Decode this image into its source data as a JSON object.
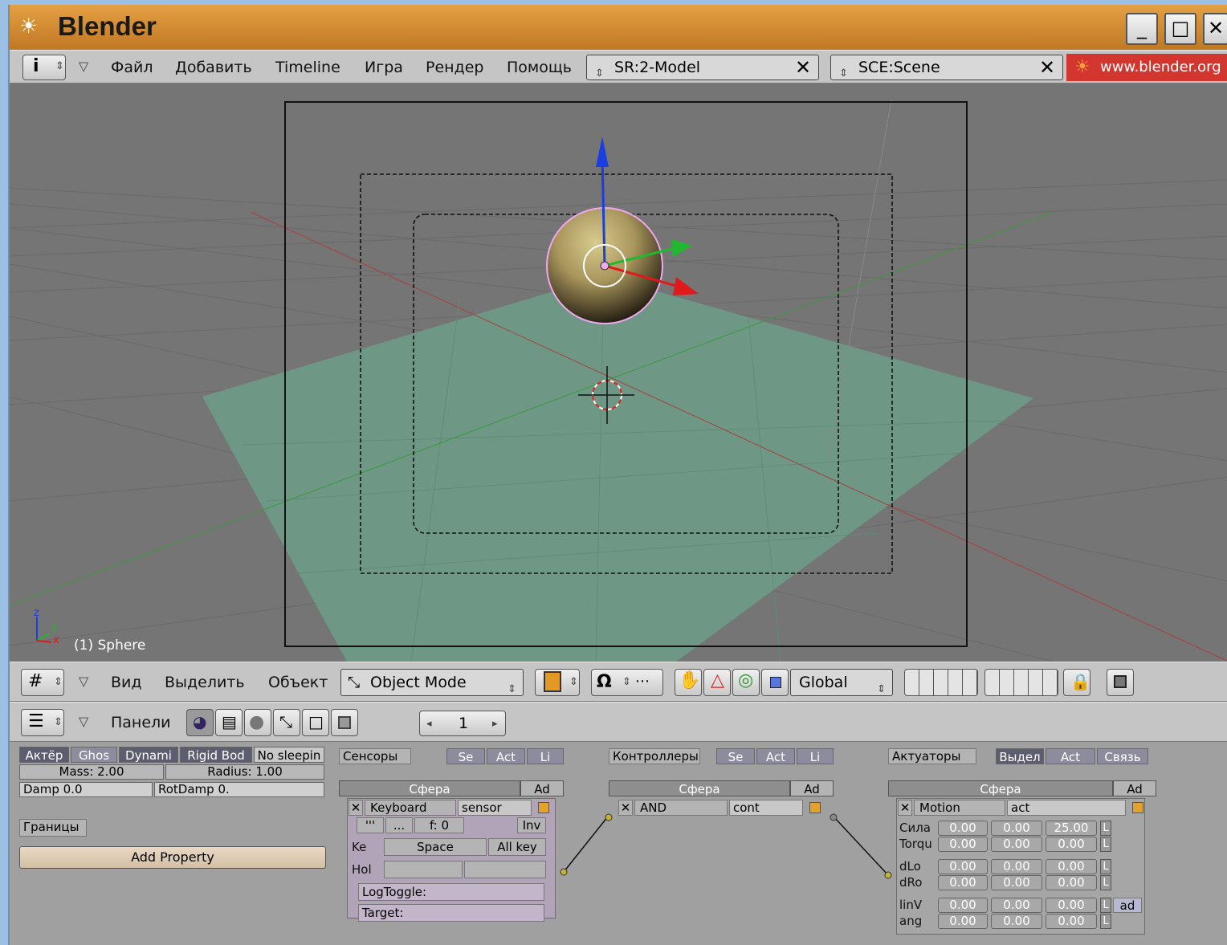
{
  "window": {
    "title": "Blender",
    "logo_icon": "blender-logo-icon",
    "minimize": "_",
    "maximize": "□",
    "close": "✕"
  },
  "top_header": {
    "info_button": "i",
    "menus": [
      "Файл",
      "Добавить",
      "Timeline",
      "Игра",
      "Рендер",
      "Помощь"
    ],
    "screen_field": "SR:2-Model",
    "scene_field": "SCE:Scene",
    "close_glyph": "✕",
    "website": "www.blender.org"
  },
  "viewport": {
    "axis_z": "z",
    "axis_y": "y",
    "axis_x": "x",
    "object_label": "(1) Sphere"
  },
  "view_header": {
    "menus": [
      "Вид",
      "Выделить",
      "Объект"
    ],
    "mode": "Object Mode",
    "orientation": "Global"
  },
  "buttons_header": {
    "panels_label": "Панели",
    "frame": "1"
  },
  "physics": {
    "tabs": [
      "Актёр",
      "Ghos",
      "Dynami",
      "Rigid Bod",
      "No sleepin"
    ],
    "mass": "Mass: 2.00",
    "radius": "Radius: 1.00",
    "damp": "Damp 0.0",
    "rotdamp": "RotDamp 0.",
    "bounds": "Границы",
    "add_property": "Add Property"
  },
  "sensors": {
    "title": "Сенсоры",
    "filters": [
      "Se",
      "Act",
      "Li"
    ],
    "object": "Сфера",
    "add": "Ad",
    "type": "Keyboard",
    "name": "sensor",
    "freq": "f: 0",
    "inv": "Inv",
    "key_label": "Ke",
    "key_value": "Space",
    "all_keys": "All key",
    "hold_label": "Hol",
    "logtoggle": "LogToggle:",
    "target": "Target:"
  },
  "controllers": {
    "title": "Контроллеры",
    "filters": [
      "Se",
      "Act",
      "Li"
    ],
    "object": "Сфера",
    "add": "Ad",
    "type": "AND",
    "name": "cont"
  },
  "actuators": {
    "title": "Актуаторы",
    "filters": [
      "Выдел",
      "Act",
      "Связь"
    ],
    "object": "Сфера",
    "add": "Ad",
    "type": "Motion",
    "name": "act",
    "rows": [
      {
        "label": "Сила",
        "v": [
          "0.00",
          "0.00",
          "25.00"
        ]
      },
      {
        "label": "Torqu",
        "v": [
          "0.00",
          "0.00",
          "0.00"
        ]
      },
      {
        "label": "dLo",
        "v": [
          "0.00",
          "0.00",
          "0.00"
        ]
      },
      {
        "label": "dRo",
        "v": [
          "0.00",
          "0.00",
          "0.00"
        ]
      },
      {
        "label": "linV",
        "v": [
          "0.00",
          "0.00",
          "0.00"
        ]
      },
      {
        "label": "ang",
        "v": [
          "0.00",
          "0.00",
          "0.00"
        ]
      }
    ],
    "local": "L",
    "add_btn": "ad"
  },
  "colors": {
    "titlebar": "#d58c33",
    "viewport_bg": "#757575",
    "ground_plane": "#6e9a86",
    "sphere": "#b5a366",
    "axis_z": "#1a3fe0",
    "axis_y": "#1fb82f",
    "axis_x": "#e01a1a"
  }
}
